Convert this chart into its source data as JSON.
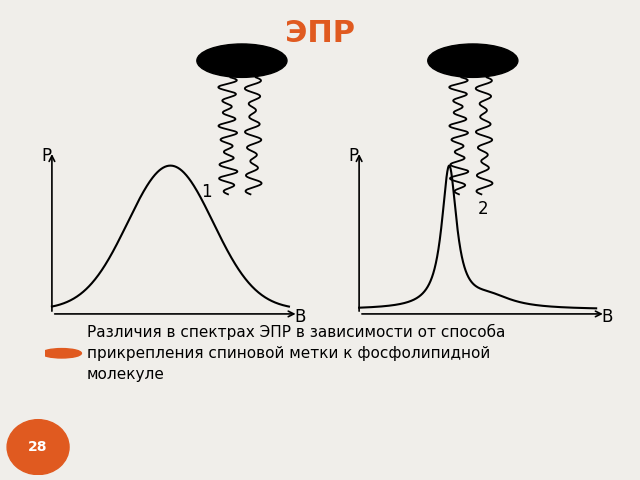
{
  "title": "ЭПР",
  "title_color": "#e05a20",
  "title_fontsize": 22,
  "background_color": "#f0eeea",
  "bullet_text": "Различия в спектрах ЭПР в зависимости от способа\nприкрепления спиновой метки к фосфолипидной\nмолекуле",
  "bullet_color": "#e05a20",
  "page_number": "28",
  "page_number_color": "#e05a20",
  "label1": "1",
  "label2": "2",
  "axis_label_P": "P",
  "axis_label_B": "B",
  "text_fontsize": 11,
  "label_fontsize": 12
}
